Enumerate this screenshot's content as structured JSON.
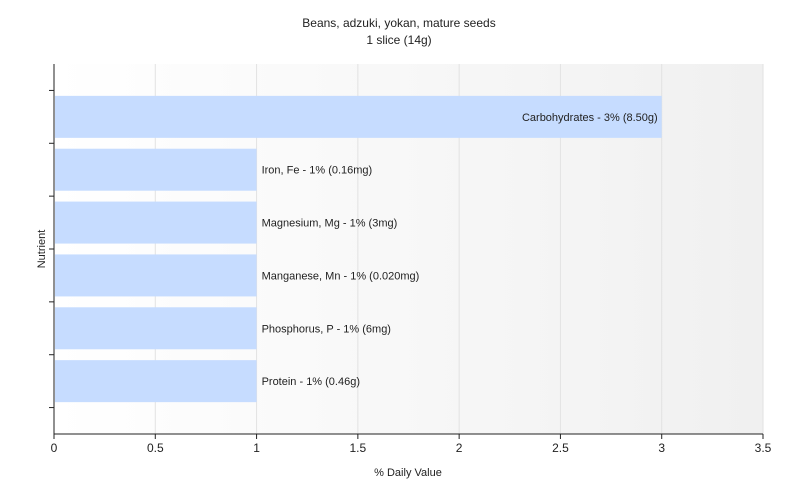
{
  "chart_data": {
    "type": "bar",
    "orientation": "horizontal",
    "title": "Beans, adzuki, yokan, mature seeds",
    "subtitle": "1 slice (14g)",
    "xlabel": "% Daily Value",
    "ylabel": "Nutrient",
    "xlim": [
      0,
      3.5
    ],
    "xticks": [
      "0",
      "0.5",
      "1",
      "1.5",
      "2",
      "2.5",
      "3",
      "3.5"
    ],
    "grid": true,
    "bar_color": "#c6dcff",
    "categories": [
      "Carbohydrates",
      "Iron, Fe",
      "Magnesium, Mg",
      "Manganese, Mn",
      "Phosphorus, P",
      "Protein"
    ],
    "values": [
      3,
      1,
      1,
      1,
      1,
      1
    ],
    "data_labels": [
      "Carbohydrates - 3% (8.50g)",
      "Iron, Fe - 1% (0.16mg)",
      "Magnesium, Mg - 1% (3mg)",
      "Manganese, Mn - 1% (0.020mg)",
      "Phosphorus, P - 1% (6mg)",
      "Protein - 1% (0.46g)"
    ]
  }
}
